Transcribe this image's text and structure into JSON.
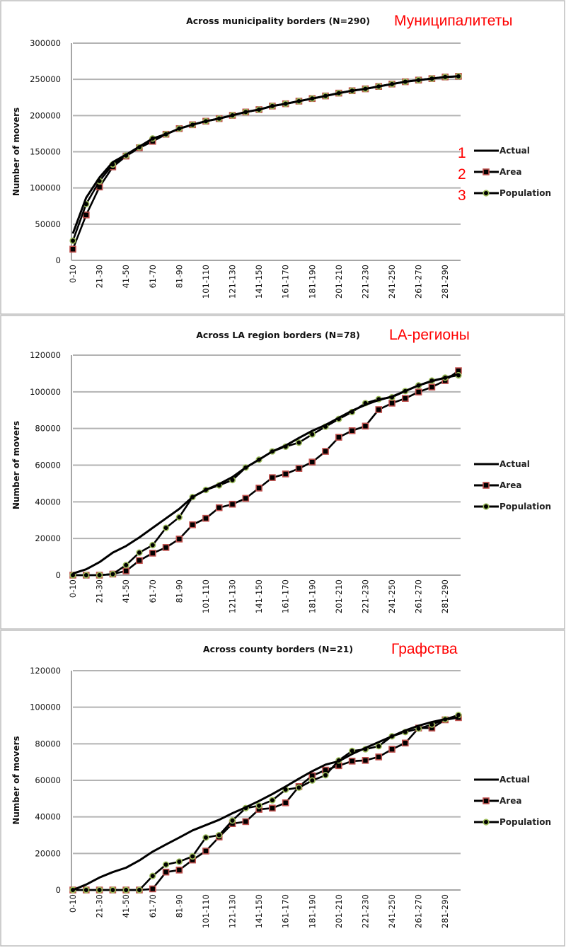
{
  "chart_data": [
    {
      "type": "line",
      "title": "Across municipality borders (N=290)",
      "annotation": "Муниципалитеты",
      "legend_numbers": [
        "1",
        "2",
        "3"
      ],
      "ylabel": "Number of movers",
      "xlabel": "",
      "ylim": [
        0,
        300000
      ],
      "yticks": [
        "0",
        "50000",
        "100000",
        "150000",
        "200000",
        "250000",
        "300000"
      ],
      "tick_labels": [
        "0-10",
        "21-30",
        "41-50",
        "61-70",
        "81-90",
        "101-110",
        "121-130",
        "141-150",
        "161-170",
        "181-190",
        "201-210",
        "221-230",
        "241-250",
        "261-270",
        "281-290"
      ],
      "legend": "right",
      "grid": true,
      "series": [
        {
          "name": "Actual",
          "values": [
            37000,
            86600,
            114400,
            135600,
            146000,
            157000,
            168300,
            174200,
            182000,
            187300,
            192200,
            195800,
            200300,
            204900,
            208200,
            213100,
            216300,
            219900,
            223500,
            227100,
            231000,
            234300,
            236900,
            240200,
            243500,
            246700,
            249000,
            251000,
            253300,
            254200
          ]
        },
        {
          "name": "Area",
          "values": [
            15400,
            62700,
            101300,
            129100,
            144000,
            155500,
            164400,
            174200,
            182000,
            187300,
            192200,
            195800,
            200300,
            204900,
            208200,
            213100,
            216300,
            219900,
            223500,
            227100,
            231000,
            234300,
            236900,
            240200,
            243500,
            246700,
            249000,
            251000,
            253300,
            254200
          ]
        },
        {
          "name": "Population",
          "values": [
            27100,
            77800,
            109500,
            132400,
            144800,
            156200,
            168300,
            174200,
            182000,
            187300,
            192200,
            195800,
            200300,
            204900,
            208200,
            213100,
            216300,
            219900,
            223500,
            227100,
            231000,
            234300,
            236900,
            240200,
            243500,
            246700,
            249000,
            251000,
            253300,
            254200
          ]
        }
      ]
    },
    {
      "type": "line",
      "title": "Across LA region borders (N=78)",
      "annotation": "LA-регионы",
      "ylabel": "Number of movers",
      "xlabel": "",
      "ylim": [
        0,
        120000
      ],
      "yticks": [
        "0",
        "20000",
        "40000",
        "60000",
        "80000",
        "100000",
        "120000"
      ],
      "tick_labels": [
        "0-10",
        "21-30",
        "41-50",
        "61-70",
        "81-90",
        "101-110",
        "121-130",
        "141-150",
        "161-170",
        "181-190",
        "201-210",
        "221-230",
        "241-250",
        "261-270",
        "281-290"
      ],
      "legend": "right",
      "grid": true,
      "series": [
        {
          "name": "Actual",
          "values": [
            900,
            3200,
            7100,
            12300,
            15900,
            20600,
            25800,
            31000,
            36100,
            42600,
            46500,
            49700,
            53500,
            58700,
            63000,
            67500,
            70700,
            74800,
            78700,
            81900,
            85800,
            89700,
            92900,
            95500,
            97400,
            100400,
            103500,
            105800,
            107700,
            109700
          ]
        },
        {
          "name": "Area",
          "values": [
            0,
            0,
            0,
            600,
            2300,
            8000,
            12000,
            15100,
            19700,
            27500,
            31000,
            36800,
            38700,
            41900,
            47500,
            53200,
            55200,
            58200,
            61700,
            67500,
            75200,
            78800,
            81300,
            90300,
            93800,
            96400,
            99900,
            102600,
            106100,
            111500
          ]
        },
        {
          "name": "Population",
          "values": [
            0,
            0,
            0,
            600,
            5500,
            12300,
            16400,
            25800,
            31600,
            42600,
            46500,
            49000,
            51900,
            58700,
            63000,
            67500,
            70100,
            72300,
            76800,
            81000,
            85200,
            89000,
            93800,
            96000,
            97000,
            100400,
            103500,
            106100,
            107700,
            109000
          ]
        }
      ]
    },
    {
      "type": "line",
      "title": "Across county borders (N=21)",
      "annotation": "Графства",
      "ylabel": "Number of movers",
      "xlabel": "",
      "ylim": [
        0,
        120000
      ],
      "yticks": [
        "0",
        "20000",
        "40000",
        "60000",
        "80000",
        "100000",
        "120000"
      ],
      "tick_labels": [
        "0-10",
        "21-30",
        "41-50",
        "61-70",
        "81-90",
        "101-110",
        "121-130",
        "141-150",
        "161-170",
        "181-190",
        "201-210",
        "221-230",
        "241-250",
        "261-270",
        "281-290"
      ],
      "legend": "right",
      "grid": true,
      "series": [
        {
          "name": "Actual",
          "values": [
            0,
            3000,
            6800,
            9800,
            12200,
            16200,
            21000,
            24900,
            28700,
            32600,
            35500,
            38400,
            42000,
            45200,
            48700,
            52500,
            56600,
            60900,
            65000,
            68600,
            70500,
            74400,
            77700,
            80900,
            84100,
            87300,
            89900,
            91900,
            93500,
            94400
          ]
        },
        {
          "name": "Area",
          "values": [
            0,
            0,
            0,
            0,
            0,
            0,
            600,
            9800,
            10900,
            16400,
            21300,
            29000,
            36300,
            37400,
            44100,
            44800,
            47700,
            56600,
            62500,
            65600,
            68000,
            70500,
            70900,
            72800,
            77000,
            80400,
            88600,
            88600,
            93100,
            94300
          ]
        },
        {
          "name": "Population",
          "values": [
            0,
            0,
            0,
            0,
            0,
            0,
            7700,
            13900,
            15500,
            18400,
            28700,
            30000,
            38000,
            44800,
            46100,
            49100,
            54900,
            56000,
            59900,
            62800,
            70900,
            76100,
            77000,
            78700,
            84100,
            86400,
            88300,
            90500,
            93400,
            95700
          ]
        }
      ]
    }
  ],
  "colors": {
    "line": "#000000",
    "area_marker_edge": "#c0504d",
    "population_marker_edge": "#9bbb59",
    "annotation": "#ff0000",
    "grid": "#b3b3b3"
  }
}
